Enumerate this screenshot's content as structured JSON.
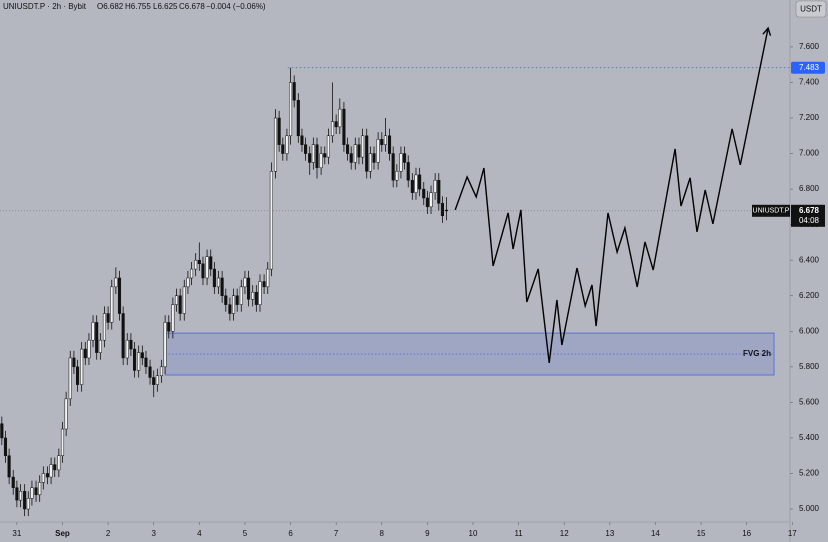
{
  "chart_data": {
    "type": "candlestick",
    "header": {
      "symbol": "UNIUSDT.P · 2h · Bybit",
      "open": "O6.682",
      "high": "H6.755",
      "low": "L6.625",
      "close": "C6.678",
      "change": "−0.004 (−0.06%)"
    },
    "currency": "USDT",
    "xlim": [
      -0.37,
      16.95
    ],
    "xticks": [
      {
        "value": 0,
        "label": "31"
      },
      {
        "value": 1,
        "label": "Sep"
      },
      2,
      3,
      4,
      5,
      6,
      7,
      8,
      9,
      10,
      11,
      12,
      13,
      14,
      15,
      16,
      17
    ],
    "ylim": [
      4.927,
      7.864
    ],
    "yticks": [
      {
        "value": 5.0,
        "label": "5.000"
      },
      {
        "value": 5.2,
        "label": "5.200"
      },
      {
        "value": 5.4,
        "label": "5.400"
      },
      {
        "value": 5.6,
        "label": "5.600"
      },
      {
        "value": 5.8,
        "label": "5.800"
      },
      {
        "value": 6.0,
        "label": "6.000"
      },
      {
        "value": 6.2,
        "label": "6.200"
      },
      {
        "value": 6.4,
        "label": "6.400"
      },
      {
        "value": 6.6,
        "label": "6.600"
      },
      {
        "value": 6.8,
        "label": "6.800"
      },
      {
        "value": 7.0,
        "label": "7.000"
      },
      {
        "value": 7.2,
        "label": "7.200"
      },
      {
        "value": 7.4,
        "label": "7.400"
      },
      {
        "value": 7.6,
        "label": "7.600"
      }
    ],
    "grid": false,
    "up_color": "#f2f2f2",
    "down_color": "#111111",
    "candles": {
      "x": [
        -0.33,
        -0.25,
        -0.17,
        -0.08,
        0,
        0.08,
        0.17,
        0.25,
        0.33,
        0.42,
        0.5,
        0.58,
        0.67,
        0.75,
        0.83,
        0.92,
        1,
        1.08,
        1.17,
        1.25,
        1.33,
        1.42,
        1.5,
        1.58,
        1.67,
        1.75,
        1.83,
        1.92,
        2,
        2.08,
        2.17,
        2.25,
        2.33,
        2.42,
        2.5,
        2.58,
        2.67,
        2.75,
        2.83,
        2.92,
        3,
        3.08,
        3.17,
        3.25,
        3.33,
        3.42,
        3.5,
        3.58,
        3.67,
        3.75,
        3.83,
        3.92,
        4,
        4.08,
        4.17,
        4.25,
        4.33,
        4.42,
        4.5,
        4.58,
        4.67,
        4.75,
        4.83,
        4.92,
        5,
        5.08,
        5.17,
        5.25,
        5.33,
        5.42,
        5.5,
        5.58,
        5.67,
        5.75,
        5.83,
        5.92,
        6,
        6.08,
        6.17,
        6.25,
        6.33,
        6.42,
        6.5,
        6.58,
        6.67,
        6.75,
        6.83,
        6.92,
        7,
        7.08,
        7.17,
        7.25,
        7.33,
        7.42,
        7.5,
        7.58,
        7.67,
        7.75,
        7.83,
        7.92,
        8,
        8.08,
        8.17,
        8.25,
        8.33,
        8.42,
        8.5,
        8.58,
        8.67,
        8.75,
        8.83,
        8.92,
        9,
        9.08,
        9.17,
        9.25,
        9.33,
        9.42
      ],
      "open": [
        5.48,
        5.4,
        5.3,
        5.18,
        5.12,
        5.05,
        5.1,
        5.0,
        5.06,
        5.12,
        5.08,
        5.15,
        5.2,
        5.18,
        5.25,
        5.22,
        5.3,
        5.45,
        5.62,
        5.85,
        5.8,
        5.7,
        5.9,
        5.85,
        5.95,
        6.05,
        5.88,
        5.95,
        6.1,
        6.05,
        6.25,
        6.3,
        6.1,
        5.85,
        5.95,
        5.9,
        5.78,
        5.88,
        5.85,
        5.8,
        5.74,
        5.7,
        5.75,
        5.8,
        6.05,
        6.0,
        6.15,
        6.2,
        6.1,
        6.25,
        6.3,
        6.35,
        6.4,
        6.38,
        6.3,
        6.42,
        6.35,
        6.25,
        6.3,
        6.2,
        6.15,
        6.1,
        6.2,
        6.15,
        6.25,
        6.3,
        6.18,
        6.22,
        6.15,
        6.28,
        6.25,
        6.35,
        6.9,
        7.2,
        7.05,
        7.0,
        7.1,
        7.4,
        7.3,
        7.1,
        7.05,
        7.0,
        6.95,
        7.05,
        6.92,
        7.0,
        6.98,
        7.1,
        7.18,
        7.15,
        7.25,
        7.05,
        7.0,
        6.95,
        7.05,
        6.98,
        7.1,
        6.9,
        7.0,
        6.95,
        7.08,
        7.05,
        7.1,
        7.0,
        6.85,
        6.9,
        7.0,
        6.95,
        6.85,
        6.78,
        6.88,
        6.8,
        6.75,
        6.7,
        6.78,
        6.85,
        6.72,
        6.682
      ],
      "high": [
        5.52,
        5.44,
        5.34,
        5.22,
        5.16,
        5.14,
        5.14,
        5.1,
        5.16,
        5.16,
        5.19,
        5.24,
        5.24,
        5.29,
        5.29,
        5.34,
        5.49,
        5.66,
        5.89,
        5.89,
        5.84,
        5.94,
        5.94,
        5.99,
        6.09,
        6.09,
        5.99,
        6.14,
        6.14,
        6.29,
        6.36,
        6.34,
        6.14,
        5.99,
        5.99,
        5.94,
        5.92,
        5.92,
        5.89,
        5.84,
        5.78,
        5.79,
        5.84,
        6.09,
        6.09,
        6.19,
        6.24,
        6.24,
        6.29,
        6.34,
        6.39,
        6.44,
        6.5,
        6.42,
        6.46,
        6.46,
        6.39,
        6.34,
        6.34,
        6.24,
        6.19,
        6.24,
        6.24,
        6.29,
        6.34,
        6.34,
        6.26,
        6.26,
        6.32,
        6.32,
        6.39,
        6.95,
        7.25,
        7.24,
        7.09,
        7.14,
        7.483,
        7.44,
        7.34,
        7.14,
        7.09,
        7.04,
        7.09,
        7.09,
        7.04,
        7.04,
        7.14,
        7.4,
        7.22,
        7.31,
        7.29,
        7.09,
        7.04,
        7.09,
        7.09,
        7.14,
        7.14,
        7.04,
        7.04,
        7.12,
        7.12,
        7.2,
        7.14,
        7.04,
        6.94,
        7.04,
        7.04,
        6.99,
        6.89,
        6.92,
        6.92,
        6.84,
        6.79,
        6.82,
        6.89,
        6.89,
        6.76,
        6.755
      ],
      "low": [
        5.36,
        5.26,
        5.14,
        5.08,
        5.01,
        5.01,
        4.96,
        4.96,
        5.02,
        5.04,
        5.04,
        5.11,
        5.14,
        5.14,
        5.18,
        5.18,
        5.26,
        5.41,
        5.58,
        5.76,
        5.66,
        5.66,
        5.81,
        5.81,
        5.91,
        5.84,
        5.84,
        5.91,
        6.01,
        6.01,
        6.21,
        6.06,
        5.81,
        5.81,
        5.86,
        5.74,
        5.74,
        5.81,
        5.76,
        5.7,
        5.63,
        5.66,
        5.71,
        5.76,
        5.96,
        5.96,
        6.11,
        6.06,
        6.06,
        6.21,
        6.26,
        6.31,
        6.34,
        6.26,
        6.26,
        6.31,
        6.21,
        6.21,
        6.16,
        6.11,
        6.06,
        6.06,
        6.11,
        6.11,
        6.21,
        6.14,
        6.14,
        6.11,
        6.11,
        6.21,
        6.21,
        6.31,
        6.86,
        7.01,
        6.96,
        6.96,
        7.05,
        7.26,
        7.06,
        7.01,
        6.96,
        6.88,
        6.91,
        6.86,
        6.88,
        6.94,
        6.94,
        7.06,
        7.11,
        7.11,
        7.01,
        6.96,
        6.91,
        6.91,
        6.94,
        6.94,
        6.86,
        6.86,
        6.91,
        6.91,
        7.01,
        7.01,
        6.96,
        6.81,
        6.81,
        6.86,
        6.91,
        6.81,
        6.74,
        6.74,
        6.76,
        6.71,
        6.66,
        6.66,
        6.74,
        6.68,
        6.61,
        6.625
      ],
      "close": [
        5.4,
        5.3,
        5.18,
        5.12,
        5.05,
        5.1,
        5.0,
        5.06,
        5.12,
        5.08,
        5.15,
        5.2,
        5.18,
        5.25,
        5.22,
        5.3,
        5.45,
        5.62,
        5.85,
        5.8,
        5.7,
        5.9,
        5.85,
        5.95,
        6.05,
        5.88,
        5.95,
        6.1,
        6.05,
        6.25,
        6.3,
        6.1,
        5.85,
        5.95,
        5.9,
        5.78,
        5.88,
        5.85,
        5.8,
        5.74,
        5.7,
        5.75,
        5.8,
        6.05,
        6.0,
        6.15,
        6.2,
        6.1,
        6.25,
        6.3,
        6.35,
        6.4,
        6.38,
        6.3,
        6.42,
        6.35,
        6.25,
        6.3,
        6.2,
        6.15,
        6.1,
        6.2,
        6.15,
        6.25,
        6.3,
        6.18,
        6.22,
        6.15,
        6.28,
        6.25,
        6.35,
        6.9,
        7.2,
        7.05,
        7.0,
        7.1,
        7.4,
        7.3,
        7.1,
        7.05,
        7.0,
        6.95,
        7.05,
        6.92,
        7.0,
        6.98,
        7.1,
        7.18,
        7.15,
        7.25,
        7.05,
        7.0,
        6.95,
        7.05,
        6.98,
        7.1,
        6.9,
        7.0,
        6.95,
        7.08,
        7.05,
        7.1,
        7.0,
        6.85,
        6.9,
        7.0,
        6.95,
        6.85,
        6.78,
        6.88,
        6.8,
        6.75,
        6.7,
        6.78,
        6.85,
        6.72,
        6.65,
        6.678
      ]
    },
    "high_level": {
      "x": 5.94,
      "value": 7.483,
      "color": "#2962ff"
    },
    "last_price": {
      "symbol": "UNIUSDT.P",
      "value": 6.678,
      "countdown": "04:08"
    },
    "fvg": {
      "label": "FVG 2h",
      "xlim": [
        3.25,
        16.6
      ],
      "ylim": [
        5.754,
        5.99
      ],
      "color": "#3c5ae0"
    },
    "projection": {
      "color": "#000000",
      "x": [
        9.61,
        9.87,
        10.07,
        10.24,
        10.44,
        10.77,
        10.88,
        11.05,
        11.18,
        11.43,
        11.67,
        11.84,
        11.95,
        12.28,
        12.46,
        12.61,
        12.7,
        12.96,
        13.16,
        13.33,
        13.6,
        13.77,
        13.95,
        14.43,
        14.56,
        14.76,
        14.91,
        15.09,
        15.26,
        15.68,
        15.86,
        16.47
      ],
      "values": [
        6.683,
        6.868,
        6.756,
        6.919,
        6.368,
        6.666,
        6.463,
        6.683,
        6.165,
        6.351,
        5.822,
        6.176,
        5.923,
        6.356,
        6.143,
        6.261,
        6.03,
        6.666,
        6.446,
        6.581,
        6.249,
        6.503,
        6.345,
        7.026,
        6.705,
        6.863,
        6.559,
        6.795,
        6.604,
        7.139,
        6.936,
        7.706
      ]
    }
  }
}
